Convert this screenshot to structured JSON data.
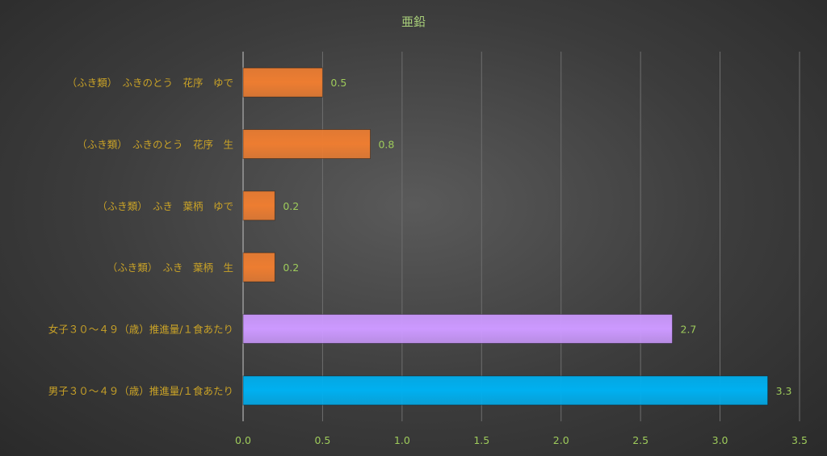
{
  "chart_data": {
    "type": "bar",
    "orientation": "horizontal",
    "title": "亜鉛",
    "xlabel": "",
    "ylabel": "",
    "xlim": [
      0,
      3.5
    ],
    "x_ticks": [
      "0.0",
      "0.5",
      "1.0",
      "1.5",
      "2.0",
      "2.5",
      "3.0",
      "3.5"
    ],
    "grid": true,
    "legend": "none",
    "categories": [
      "（ふき類）　ふきのとう　花序　ゆで",
      "（ふき類）　ふきのとう　花序　生",
      "（ふき類）　ふき　葉柄　ゆで",
      "（ふき類）　ふき　葉柄　生",
      "女子３０～４９（歳）推進量/１食あたり",
      "男子３０～４９（歳）推進量/１食あたり"
    ],
    "values": [
      0.5,
      0.8,
      0.2,
      0.2,
      2.7,
      3.3
    ],
    "data_labels": [
      "0.5",
      "0.8",
      "0.2",
      "0.2",
      "2.7",
      "3.3"
    ],
    "bar_colors": [
      "#ed7d31",
      "#ed7d31",
      "#ed7d31",
      "#ed7d31",
      "#cc99ff",
      "#00b0f0"
    ],
    "colors": {
      "text": "#c9a227",
      "value_text": "#9ecb5b",
      "title": "#a9d07a",
      "grid": "#6e6e6e",
      "axis": "#9a9a9a"
    }
  }
}
